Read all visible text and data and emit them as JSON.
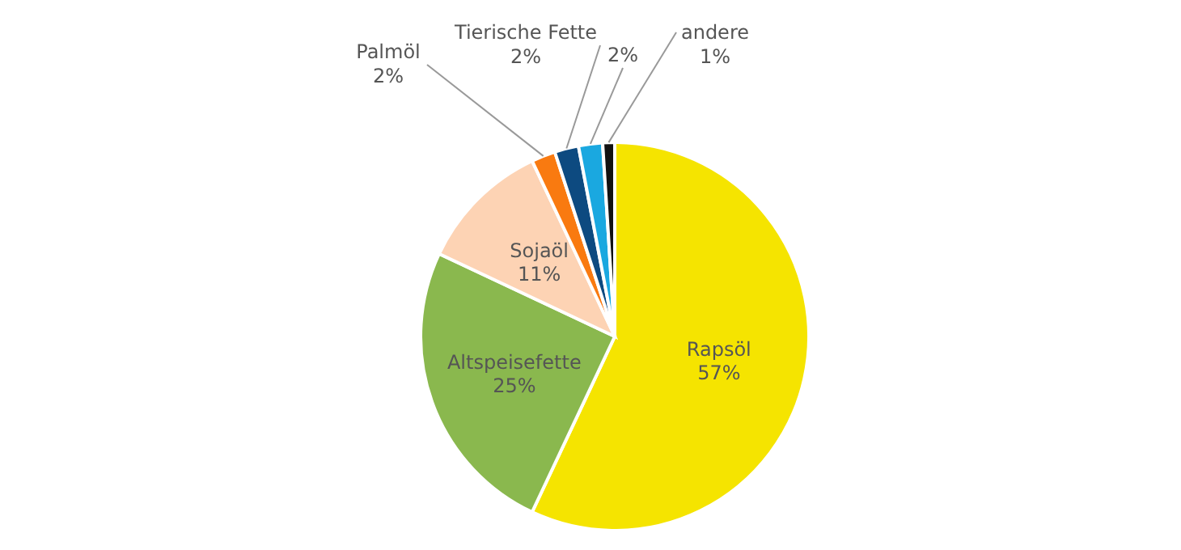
{
  "chart_data": {
    "type": "pie",
    "categories": [
      "Rapsöl",
      "Altspeisefette",
      "Sojaöl",
      "Palmöl",
      "Tierische Fette",
      null,
      "andere"
    ],
    "values": [
      57,
      25,
      11,
      2,
      2,
      2,
      1
    ],
    "value_labels": [
      "57%",
      "25%",
      "11%",
      "2%",
      "2%",
      "2%",
      "1%"
    ],
    "colors": [
      "#f5e400",
      "#8ab84e",
      "#fdd3b4",
      "#f97a10",
      "#0d4a80",
      "#1aa8e0",
      "#111111"
    ]
  }
}
